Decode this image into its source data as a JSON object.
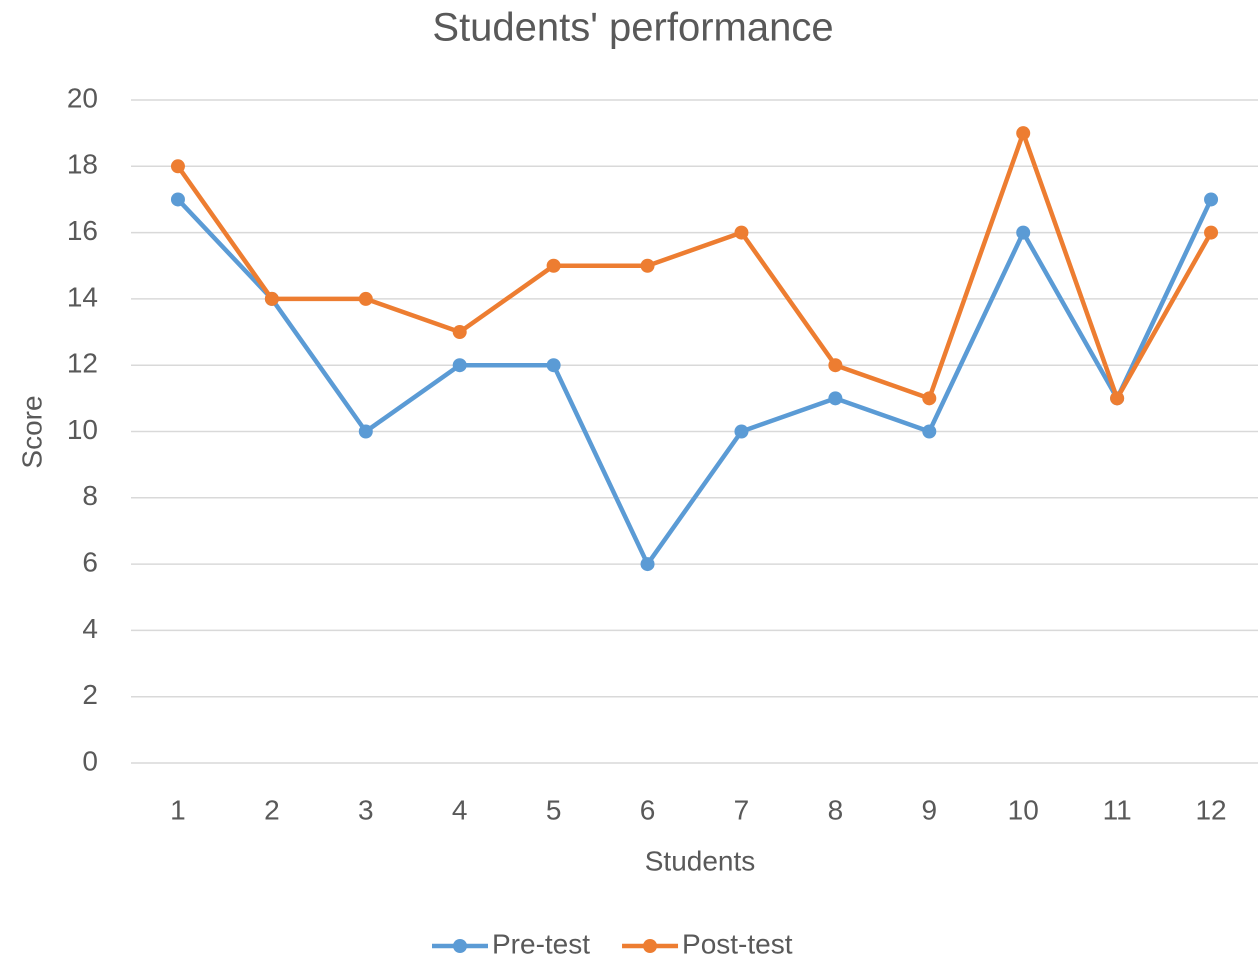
{
  "chart_data": {
    "type": "line",
    "title": "Students' performance",
    "x_label": "Students",
    "y_label": "Score",
    "categories": [
      "1",
      "2",
      "3",
      "4",
      "5",
      "6",
      "7",
      "8",
      "9",
      "10",
      "11",
      "12"
    ],
    "series": [
      {
        "name": "Pre-test",
        "color": "#5b9bd5",
        "values": [
          17,
          14,
          10,
          12,
          12,
          6,
          10,
          11,
          10,
          16,
          11,
          17
        ]
      },
      {
        "name": "Post-test",
        "color": "#ed7d31",
        "values": [
          18,
          14,
          14,
          13,
          15,
          15,
          16,
          12,
          11,
          19,
          11,
          16
        ]
      }
    ],
    "ylim": [
      0,
      20
    ],
    "yticks": [
      0,
      2,
      4,
      6,
      8,
      10,
      12,
      14,
      16,
      18,
      20
    ],
    "grid": true,
    "legend": "bottom"
  }
}
